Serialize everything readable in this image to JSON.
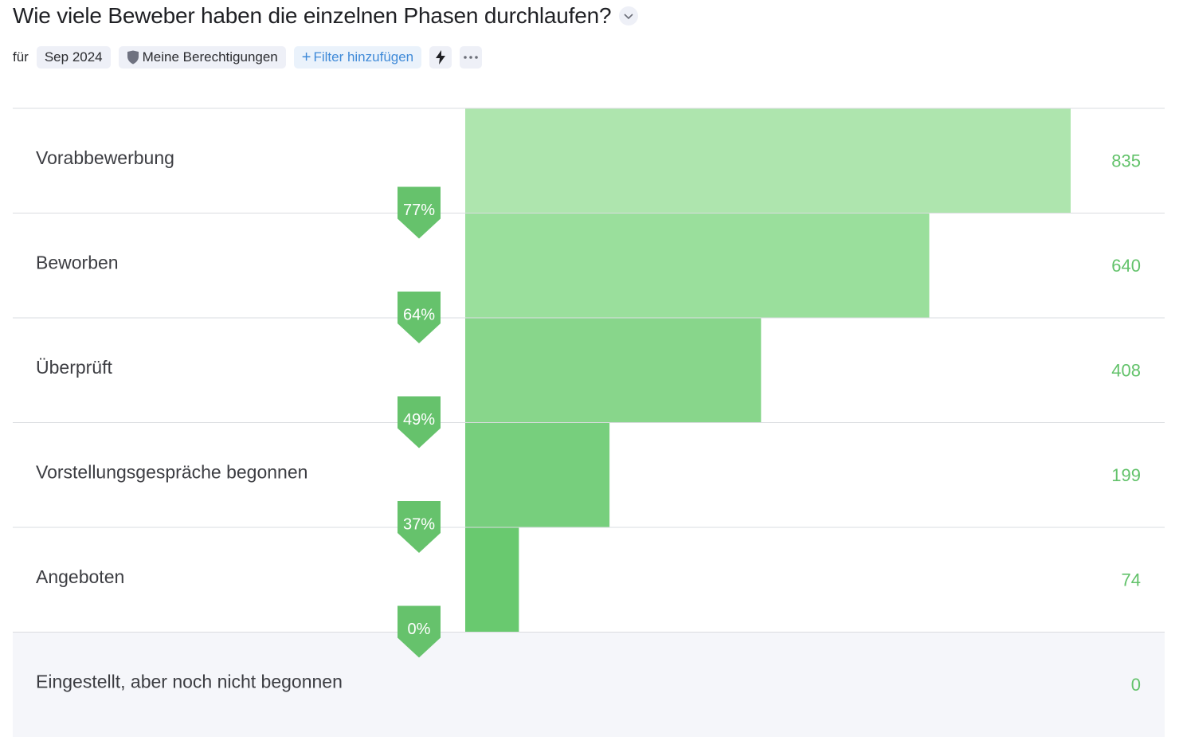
{
  "header": {
    "title": "Wie viele Beweber haben die einzelnen Phasen durchlaufen?",
    "caret_icon": "chevron-down-icon"
  },
  "filters": {
    "for_label": "für",
    "period": "Sep 2024",
    "permissions": "Meine Berechtigungen",
    "permissions_icon": "shield-icon",
    "add_filter": "Filter hinzufügen",
    "add_icon": "plus-icon",
    "quick_icon": "lightning-icon",
    "more_icon": "more-icon"
  },
  "chart_data": {
    "type": "bar",
    "orientation": "horizontal-funnel",
    "categories": [
      "Vorabbewerbung",
      "Beworben",
      "Überprüft",
      "Vorstellungsgespräche begonnen",
      "Angeboten",
      "Eingestellt, aber noch nicht begonnen"
    ],
    "values": [
      835,
      640,
      408,
      199,
      74,
      0
    ],
    "value_labels": [
      "835",
      "640",
      "408",
      "199",
      "74",
      "0"
    ],
    "conversion_labels": [
      "77%",
      "64%",
      "49%",
      "37%",
      "0%"
    ],
    "colors": {
      "bars": [
        "#aee5ae",
        "#9adf9c",
        "#88d68b",
        "#77cf7d",
        "#69c96f",
        "#62c46b"
      ],
      "badge": "#66c26c",
      "value_text": "#62c26a",
      "grid": "#dadce0",
      "last_row_bg": "#f5f6fa"
    }
  }
}
